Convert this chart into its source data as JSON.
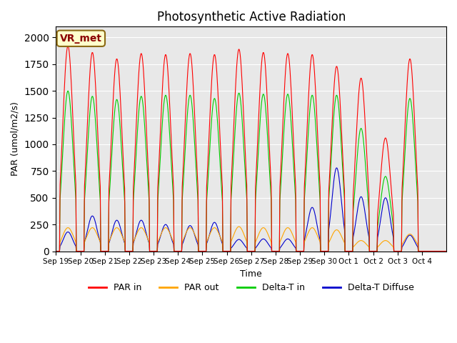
{
  "title": "Photosynthetic Active Radiation",
  "ylabel": "PAR (umol/m2/s)",
  "xlabel": "Time",
  "legend_label": "VR_met",
  "series_names": [
    "PAR in",
    "PAR out",
    "Delta-T in",
    "Delta-T Diffuse"
  ],
  "series_colors": [
    "#ff0000",
    "#ffa500",
    "#00cc00",
    "#0000cc"
  ],
  "ylim": [
    0,
    2100
  ],
  "background_color": "#e8e8e8",
  "x_tick_labels": [
    "Sep 19",
    "Sep 20",
    "Sep 21",
    "Sep 22",
    "Sep 23",
    "Sep 24",
    "Sep 25",
    "Sep 26",
    "Sep 27",
    "Sep 28",
    "Sep 29",
    "Sep 30",
    "Oct 1",
    "Oct 2",
    "Oct 3",
    "Oct 4"
  ],
  "num_days": 16,
  "points_per_day": 48,
  "par_in_peaks": [
    1920,
    1860,
    1800,
    1850,
    1840,
    1850,
    1840,
    1890,
    1860,
    1850,
    1840,
    1730,
    1620,
    1060,
    1800,
    0
  ],
  "par_out_peaks": [
    220,
    220,
    220,
    220,
    220,
    220,
    220,
    230,
    220,
    220,
    220,
    200,
    100,
    100,
    160,
    0
  ],
  "delta_t_in_peaks": [
    1500,
    1450,
    1420,
    1450,
    1460,
    1460,
    1430,
    1480,
    1470,
    1470,
    1460,
    1460,
    1150,
    700,
    1430,
    0
  ],
  "delta_t_diff_peaks": [
    180,
    330,
    290,
    290,
    250,
    240,
    270,
    110,
    115,
    115,
    410,
    780,
    510,
    500,
    150,
    0
  ]
}
